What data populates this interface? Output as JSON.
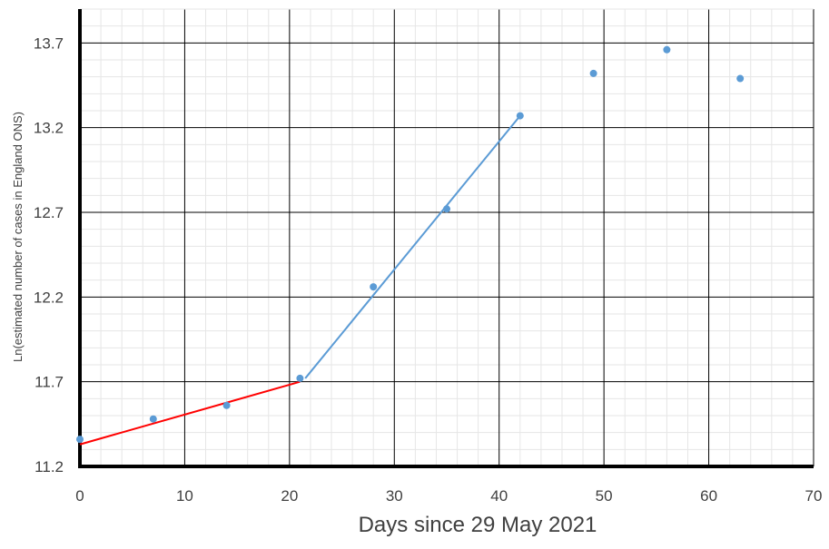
{
  "chart_data": {
    "type": "scatter",
    "title": "",
    "xlabel": "Days since 29 May 2021",
    "ylabel": "Ln(estimated number of cases in England ONS)",
    "xlim": [
      0,
      70
    ],
    "ylim": [
      11.2,
      13.9
    ],
    "x_ticks": [
      "0",
      "10",
      "20",
      "30",
      "40",
      "50",
      "60",
      "70"
    ],
    "y_ticks": [
      "11.2",
      "11.7",
      "12.2",
      "12.7",
      "13.2",
      "13.7"
    ],
    "grid": true,
    "points": [
      {
        "x": 0,
        "y": 11.36
      },
      {
        "x": 7,
        "y": 11.48
      },
      {
        "x": 14,
        "y": 11.56
      },
      {
        "x": 21,
        "y": 11.72
      },
      {
        "x": 28,
        "y": 12.26
      },
      {
        "x": 35,
        "y": 12.72
      },
      {
        "x": 42,
        "y": 13.27
      },
      {
        "x": 49,
        "y": 13.52
      },
      {
        "x": 56,
        "y": 13.66
      },
      {
        "x": 63,
        "y": 13.49
      }
    ],
    "point_color": "#5b9bd5",
    "trendlines": [
      {
        "from": [
          0,
          11.33
        ],
        "to": [
          21,
          11.7
        ],
        "color": "#ff0000"
      },
      {
        "from": [
          21.5,
          11.72
        ],
        "to": [
          42,
          13.27
        ],
        "color": "#5b9bd5"
      }
    ]
  }
}
